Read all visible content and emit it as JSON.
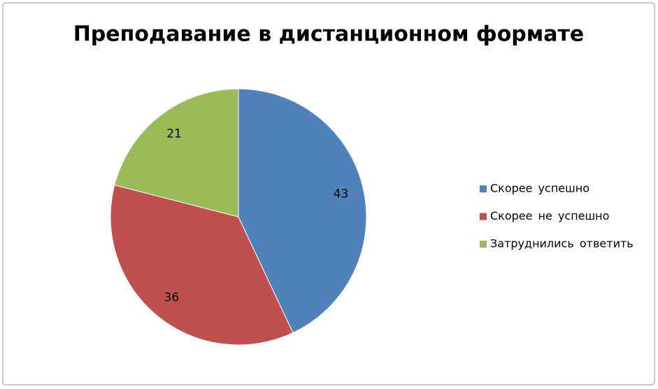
{
  "chart_data": {
    "type": "pie",
    "title": "Преподавание в дистанционном формате",
    "categories": [
      "Скорее успешно",
      "Скорее не успешно",
      "Затруднились ответить"
    ],
    "values": [
      43,
      36,
      21
    ],
    "colors": [
      "#4f81bd",
      "#c0504d",
      "#9bbb59"
    ],
    "legend": "right"
  }
}
